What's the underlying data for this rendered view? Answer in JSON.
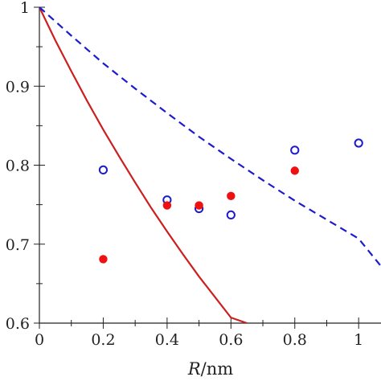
{
  "chart_data": {
    "type": "scatter",
    "title": "",
    "xlabel_var": "R",
    "xlabel_unit": "/nm",
    "ylabel": "",
    "xlim": [
      0,
      1.07
    ],
    "ylim": [
      0.6,
      1.0
    ],
    "grid": false,
    "x_ticks": [
      0,
      0.2,
      0.4,
      0.6,
      0.8,
      1
    ],
    "x_tick_labels": [
      "0",
      "0.2",
      "0.4",
      "0.6",
      "0.8",
      "1"
    ],
    "y_ticks": [
      0.6,
      0.7,
      0.8,
      0.9,
      1
    ],
    "y_tick_labels": [
      "0.6",
      "0.7",
      "0.8",
      "0.9",
      "1"
    ],
    "series": [
      {
        "kind": "line",
        "style": "solid",
        "color": "#cc1f1f",
        "x": [
          0,
          0.05,
          0.1,
          0.15,
          0.2,
          0.25,
          0.3,
          0.35,
          0.4,
          0.45,
          0.5,
          0.55,
          0.6,
          0.65
        ],
        "y": [
          1.0,
          0.958,
          0.919,
          0.881,
          0.845,
          0.811,
          0.778,
          0.746,
          0.716,
          0.687,
          0.659,
          0.633,
          0.607,
          0.6
        ]
      },
      {
        "kind": "line",
        "style": "dashed",
        "color": "#1c1ccc",
        "x": [
          0,
          0.1,
          0.2,
          0.3,
          0.4,
          0.5,
          0.6,
          0.7,
          0.8,
          0.9,
          1.0,
          1.07
        ],
        "y": [
          1.0,
          0.964,
          0.929,
          0.897,
          0.866,
          0.836,
          0.808,
          0.781,
          0.755,
          0.731,
          0.707,
          0.672
        ]
      },
      {
        "kind": "scatter",
        "marker": "open-circle",
        "color": "#1c1ccc",
        "x": [
          0.2,
          0.4,
          0.5,
          0.6,
          0.8,
          1.0
        ],
        "y": [
          0.794,
          0.756,
          0.745,
          0.737,
          0.819,
          0.828
        ]
      },
      {
        "kind": "scatter",
        "marker": "filled-circle",
        "color": "#ee1111",
        "x": [
          0.2,
          0.4,
          0.5,
          0.6,
          0.8
        ],
        "y": [
          0.681,
          0.749,
          0.749,
          0.761,
          0.793
        ]
      }
    ]
  }
}
